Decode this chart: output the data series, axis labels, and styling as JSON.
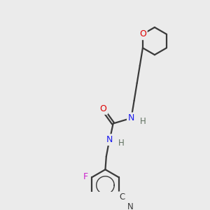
{
  "bg": "#ebebeb",
  "bond_color": "#3a3a3a",
  "O_color": "#dd0000",
  "N_color": "#1a1aee",
  "F_color": "#cc22cc",
  "dark": "#3a3a3a",
  "H_color": "#607060",
  "figsize": [
    3.0,
    3.0
  ],
  "dpi": 100,
  "xlim": [
    0,
    10
  ],
  "ylim": [
    0,
    10
  ]
}
